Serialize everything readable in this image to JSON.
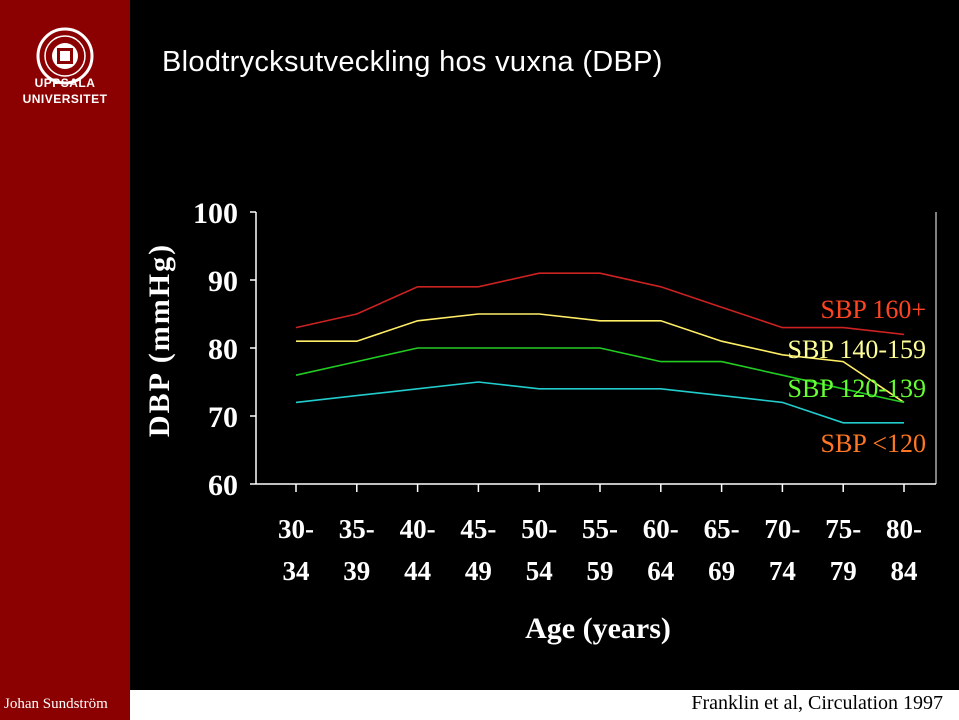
{
  "slide": {
    "title": "Blodtrycksutveckling hos vuxna (DBP)",
    "author": "Johan Sundström",
    "citation": "Franklin et al, Circulation 1997",
    "university": {
      "line1": "UPPSALA",
      "line2": "UNIVERSITET"
    }
  },
  "chart_data": {
    "type": "line",
    "ylabel": "DBP (mmHg)",
    "xlabel": "Age (years)",
    "ylim": [
      60,
      100
    ],
    "yticks": [
      "100",
      "90",
      "80",
      "70",
      "60"
    ],
    "categories": [
      "30-34",
      "35-39",
      "40-44",
      "45-49",
      "50-54",
      "55-59",
      "60-64",
      "65-69",
      "70-74",
      "75-79",
      "80-84"
    ],
    "category_labels": [
      [
        "30-",
        "34"
      ],
      [
        "35-",
        "39"
      ],
      [
        "40-",
        "44"
      ],
      [
        "45-",
        "49"
      ],
      [
        "50-",
        "54"
      ],
      [
        "55-",
        "59"
      ],
      [
        "60-",
        "64"
      ],
      [
        "65-",
        "69"
      ],
      [
        "70-",
        "74"
      ],
      [
        "75-",
        "79"
      ],
      [
        "80-",
        "84"
      ]
    ],
    "grid": false,
    "legend": "right",
    "series": [
      {
        "name": "SBP 160+",
        "color": "#cc2222",
        "label_color": "#ff4422",
        "values": [
          83,
          85,
          89,
          89,
          91,
          91,
          89,
          86,
          83,
          83,
          82
        ]
      },
      {
        "name": "SBP 140-159",
        "color": "#ffee66",
        "label_color": "#ffff99",
        "values": [
          81,
          81,
          84,
          85,
          85,
          84,
          84,
          81,
          79,
          78,
          72
        ]
      },
      {
        "name": "SBP 120-139",
        "color": "#22cc22",
        "label_color": "#66ff33",
        "values": [
          76,
          78,
          80,
          80,
          80,
          80,
          78,
          78,
          76,
          74,
          72
        ]
      },
      {
        "name": "SBP <120",
        "color": "#22cccc",
        "label_color": "#ff7722",
        "values": [
          72,
          73,
          74,
          75,
          74,
          74,
          74,
          73,
          72,
          69,
          69
        ]
      }
    ]
  }
}
